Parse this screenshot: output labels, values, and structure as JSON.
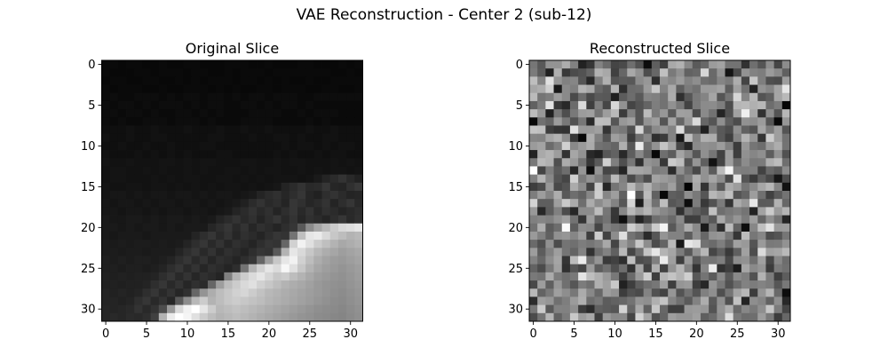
{
  "figure": {
    "suptitle": "VAE Reconstruction - Center 2 (sub-12)"
  },
  "chart_data": [
    {
      "type": "heatmap",
      "title": "Original Slice",
      "colormap": "gray",
      "grid": false,
      "xlim": [
        -0.5,
        31.5
      ],
      "ylim": [
        31.5,
        -0.5
      ],
      "xticks": [
        0,
        5,
        10,
        15,
        20,
        25,
        30
      ],
      "yticks": [
        0,
        5,
        10,
        15,
        20,
        25,
        30
      ],
      "grid_size": [
        32,
        32
      ],
      "description_of_values": "normalized intensity 0-1",
      "values": [
        [
          0.04,
          0.04,
          0.03,
          0.04,
          0.04,
          0.03,
          0.03,
          0.04,
          0.03,
          0.03,
          0.04,
          0.04,
          0.03,
          0.03,
          0.03,
          0.04,
          0.04,
          0.04,
          0.03,
          0.03,
          0.04,
          0.03,
          0.03,
          0.03,
          0.04,
          0.04,
          0.03,
          0.03,
          0.03,
          0.04,
          0.03,
          0.04
        ],
        [
          0.04,
          0.03,
          0.03,
          0.03,
          0.04,
          0.04,
          0.03,
          0.04,
          0.04,
          0.04,
          0.03,
          0.04,
          0.04,
          0.03,
          0.03,
          0.04,
          0.03,
          0.04,
          0.04,
          0.04,
          0.03,
          0.04,
          0.04,
          0.04,
          0.04,
          0.04,
          0.04,
          0.04,
          0.03,
          0.03,
          0.04,
          0.03
        ],
        [
          0.03,
          0.04,
          0.04,
          0.03,
          0.03,
          0.04,
          0.04,
          0.03,
          0.03,
          0.04,
          0.03,
          0.04,
          0.03,
          0.04,
          0.04,
          0.04,
          0.03,
          0.04,
          0.04,
          0.03,
          0.04,
          0.03,
          0.04,
          0.03,
          0.03,
          0.04,
          0.03,
          0.03,
          0.04,
          0.04,
          0.04,
          0.04
        ],
        [
          0.04,
          0.03,
          0.04,
          0.04,
          0.04,
          0.03,
          0.03,
          0.04,
          0.03,
          0.03,
          0.04,
          0.04,
          0.04,
          0.03,
          0.04,
          0.03,
          0.04,
          0.03,
          0.03,
          0.04,
          0.04,
          0.03,
          0.04,
          0.04,
          0.04,
          0.03,
          0.03,
          0.04,
          0.04,
          0.03,
          0.03,
          0.04
        ],
        [
          0.04,
          0.05,
          0.04,
          0.04,
          0.05,
          0.05,
          0.05,
          0.04,
          0.05,
          0.04,
          0.05,
          0.05,
          0.04,
          0.05,
          0.05,
          0.04,
          0.05,
          0.04,
          0.05,
          0.05,
          0.04,
          0.05,
          0.05,
          0.05,
          0.04,
          0.04,
          0.05,
          0.05,
          0.05,
          0.05,
          0.05,
          0.05
        ],
        [
          0.05,
          0.04,
          0.05,
          0.05,
          0.04,
          0.05,
          0.04,
          0.05,
          0.05,
          0.05,
          0.04,
          0.05,
          0.04,
          0.05,
          0.05,
          0.04,
          0.04,
          0.05,
          0.05,
          0.04,
          0.05,
          0.04,
          0.05,
          0.05,
          0.04,
          0.05,
          0.04,
          0.04,
          0.04,
          0.04,
          0.04,
          0.04
        ],
        [
          0.05,
          0.05,
          0.04,
          0.05,
          0.05,
          0.04,
          0.05,
          0.04,
          0.04,
          0.05,
          0.05,
          0.04,
          0.05,
          0.04,
          0.05,
          0.04,
          0.04,
          0.04,
          0.05,
          0.05,
          0.05,
          0.05,
          0.04,
          0.04,
          0.05,
          0.04,
          0.05,
          0.05,
          0.05,
          0.04,
          0.04,
          0.04
        ],
        [
          0.05,
          0.04,
          0.05,
          0.04,
          0.04,
          0.05,
          0.05,
          0.05,
          0.04,
          0.05,
          0.05,
          0.05,
          0.04,
          0.05,
          0.04,
          0.04,
          0.04,
          0.05,
          0.05,
          0.05,
          0.05,
          0.04,
          0.04,
          0.04,
          0.04,
          0.05,
          0.04,
          0.05,
          0.04,
          0.04,
          0.04,
          0.04
        ],
        [
          0.06,
          0.06,
          0.06,
          0.07,
          0.06,
          0.06,
          0.07,
          0.06,
          0.06,
          0.06,
          0.07,
          0.06,
          0.06,
          0.06,
          0.07,
          0.06,
          0.06,
          0.07,
          0.06,
          0.06,
          0.07,
          0.06,
          0.06,
          0.06,
          0.06,
          0.07,
          0.06,
          0.06,
          0.07,
          0.06,
          0.06,
          0.06
        ],
        [
          0.07,
          0.06,
          0.06,
          0.07,
          0.06,
          0.06,
          0.07,
          0.07,
          0.06,
          0.06,
          0.06,
          0.06,
          0.06,
          0.07,
          0.07,
          0.06,
          0.06,
          0.06,
          0.07,
          0.06,
          0.06,
          0.07,
          0.07,
          0.06,
          0.07,
          0.06,
          0.06,
          0.07,
          0.07,
          0.06,
          0.06,
          0.06
        ],
        [
          0.06,
          0.06,
          0.07,
          0.06,
          0.06,
          0.07,
          0.06,
          0.06,
          0.07,
          0.06,
          0.06,
          0.06,
          0.07,
          0.07,
          0.06,
          0.06,
          0.06,
          0.06,
          0.06,
          0.06,
          0.06,
          0.06,
          0.07,
          0.06,
          0.07,
          0.07,
          0.06,
          0.07,
          0.06,
          0.07,
          0.07,
          0.06
        ],
        [
          0.07,
          0.06,
          0.06,
          0.06,
          0.07,
          0.06,
          0.07,
          0.06,
          0.07,
          0.06,
          0.07,
          0.06,
          0.06,
          0.06,
          0.07,
          0.07,
          0.06,
          0.06,
          0.06,
          0.06,
          0.06,
          0.07,
          0.06,
          0.07,
          0.06,
          0.06,
          0.07,
          0.06,
          0.07,
          0.07,
          0.06,
          0.06
        ],
        [
          0.08,
          0.07,
          0.07,
          0.08,
          0.07,
          0.07,
          0.07,
          0.08,
          0.08,
          0.07,
          0.08,
          0.07,
          0.08,
          0.08,
          0.07,
          0.07,
          0.07,
          0.08,
          0.08,
          0.07,
          0.07,
          0.08,
          0.07,
          0.08,
          0.08,
          0.07,
          0.07,
          0.07,
          0.08,
          0.07,
          0.08,
          0.07
        ],
        [
          0.07,
          0.08,
          0.08,
          0.07,
          0.07,
          0.08,
          0.07,
          0.08,
          0.07,
          0.07,
          0.08,
          0.07,
          0.08,
          0.07,
          0.07,
          0.08,
          0.08,
          0.07,
          0.08,
          0.07,
          0.08,
          0.08,
          0.07,
          0.07,
          0.08,
          0.07,
          0.08,
          0.07,
          0.08,
          0.08,
          0.07,
          0.08
        ],
        [
          0.07,
          0.08,
          0.08,
          0.07,
          0.07,
          0.07,
          0.08,
          0.07,
          0.08,
          0.07,
          0.08,
          0.08,
          0.07,
          0.07,
          0.08,
          0.08,
          0.07,
          0.08,
          0.07,
          0.08,
          0.07,
          0.08,
          0.08,
          0.08,
          0.07,
          0.08,
          0.1,
          0.14,
          0.17,
          0.2,
          0.16,
          0.13
        ],
        [
          0.08,
          0.07,
          0.07,
          0.08,
          0.08,
          0.07,
          0.08,
          0.08,
          0.07,
          0.08,
          0.07,
          0.08,
          0.07,
          0.08,
          0.07,
          0.08,
          0.08,
          0.07,
          0.08,
          0.07,
          0.08,
          0.09,
          0.14,
          0.17,
          0.2,
          0.16,
          0.17,
          0.21,
          0.15,
          0.14,
          0.19,
          0.22
        ],
        [
          0.08,
          0.09,
          0.09,
          0.08,
          0.09,
          0.08,
          0.09,
          0.09,
          0.08,
          0.09,
          0.09,
          0.08,
          0.09,
          0.08,
          0.09,
          0.09,
          0.08,
          0.09,
          0.1,
          0.14,
          0.17,
          0.19,
          0.15,
          0.18,
          0.21,
          0.15,
          0.13,
          0.18,
          0.2,
          0.17,
          0.14,
          0.15
        ],
        [
          0.09,
          0.08,
          0.09,
          0.09,
          0.08,
          0.09,
          0.08,
          0.09,
          0.09,
          0.08,
          0.09,
          0.09,
          0.08,
          0.09,
          0.08,
          0.09,
          0.1,
          0.13,
          0.17,
          0.2,
          0.16,
          0.18,
          0.14,
          0.21,
          0.19,
          0.15,
          0.17,
          0.2,
          0.14,
          0.18,
          0.21,
          0.16
        ],
        [
          0.09,
          0.09,
          0.08,
          0.09,
          0.09,
          0.08,
          0.09,
          0.08,
          0.09,
          0.09,
          0.08,
          0.09,
          0.09,
          0.08,
          0.09,
          0.1,
          0.14,
          0.17,
          0.2,
          0.16,
          0.19,
          0.14,
          0.18,
          0.21,
          0.16,
          0.2,
          0.15,
          0.19,
          0.17,
          0.14,
          0.16,
          0.18
        ],
        [
          0.1,
          0.09,
          0.09,
          0.1,
          0.1,
          0.09,
          0.1,
          0.09,
          0.1,
          0.1,
          0.09,
          0.1,
          0.09,
          0.1,
          0.14,
          0.17,
          0.2,
          0.16,
          0.19,
          0.14,
          0.18,
          0.21,
          0.16,
          0.2,
          0.15,
          0.19,
          0.17,
          0.14,
          0.18,
          0.21,
          0.16,
          0.19
        ],
        [
          0.1,
          0.1,
          0.09,
          0.1,
          0.09,
          0.1,
          0.1,
          0.09,
          0.1,
          0.09,
          0.1,
          0.1,
          0.1,
          0.15,
          0.18,
          0.21,
          0.16,
          0.2,
          0.15,
          0.19,
          0.17,
          0.14,
          0.18,
          0.21,
          0.35,
          0.55,
          0.65,
          0.72,
          0.8,
          0.85,
          0.87,
          0.9
        ],
        [
          0.1,
          0.09,
          0.1,
          0.1,
          0.1,
          0.09,
          0.1,
          0.1,
          0.1,
          0.1,
          0.1,
          0.14,
          0.18,
          0.21,
          0.16,
          0.2,
          0.15,
          0.19,
          0.17,
          0.14,
          0.18,
          0.21,
          0.2,
          0.45,
          0.75,
          0.9,
          0.92,
          0.85,
          0.78,
          0.74,
          0.7,
          0.72
        ],
        [
          0.11,
          0.1,
          0.11,
          0.1,
          0.11,
          0.11,
          0.1,
          0.11,
          0.1,
          0.11,
          0.14,
          0.18,
          0.21,
          0.16,
          0.2,
          0.15,
          0.19,
          0.17,
          0.14,
          0.18,
          0.21,
          0.2,
          0.4,
          0.82,
          0.95,
          0.88,
          0.8,
          0.75,
          0.7,
          0.66,
          0.68,
          0.7
        ],
        [
          0.11,
          0.11,
          0.1,
          0.11,
          0.11,
          0.1,
          0.11,
          0.11,
          0.11,
          0.14,
          0.18,
          0.21,
          0.16,
          0.2,
          0.15,
          0.19,
          0.17,
          0.14,
          0.18,
          0.21,
          0.2,
          0.35,
          0.7,
          0.9,
          0.85,
          0.78,
          0.72,
          0.68,
          0.65,
          0.62,
          0.64,
          0.66
        ],
        [
          0.12,
          0.11,
          0.12,
          0.11,
          0.12,
          0.12,
          0.11,
          0.12,
          0.14,
          0.18,
          0.21,
          0.16,
          0.2,
          0.15,
          0.19,
          0.17,
          0.14,
          0.18,
          0.21,
          0.4,
          0.62,
          0.78,
          0.9,
          0.95,
          0.82,
          0.74,
          0.68,
          0.64,
          0.61,
          0.6,
          0.62,
          0.64
        ],
        [
          0.12,
          0.12,
          0.11,
          0.12,
          0.12,
          0.11,
          0.12,
          0.14,
          0.18,
          0.21,
          0.16,
          0.2,
          0.15,
          0.19,
          0.17,
          0.14,
          0.18,
          0.45,
          0.7,
          0.82,
          0.9,
          0.86,
          0.97,
          0.88,
          0.78,
          0.7,
          0.65,
          0.62,
          0.6,
          0.58,
          0.6,
          0.62
        ],
        [
          0.13,
          0.12,
          0.13,
          0.12,
          0.13,
          0.13,
          0.14,
          0.18,
          0.21,
          0.16,
          0.2,
          0.15,
          0.19,
          0.17,
          0.14,
          0.5,
          0.7,
          0.8,
          0.86,
          0.9,
          0.84,
          0.78,
          0.8,
          0.74,
          0.7,
          0.66,
          0.62,
          0.6,
          0.58,
          0.57,
          0.59,
          0.61
        ],
        [
          0.13,
          0.13,
          0.12,
          0.13,
          0.13,
          0.14,
          0.18,
          0.21,
          0.16,
          0.2,
          0.15,
          0.19,
          0.17,
          0.4,
          0.62,
          0.74,
          0.8,
          0.85,
          0.88,
          0.82,
          0.78,
          0.74,
          0.7,
          0.68,
          0.66,
          0.63,
          0.6,
          0.58,
          0.57,
          0.56,
          0.58,
          0.6
        ],
        [
          0.14,
          0.13,
          0.14,
          0.13,
          0.14,
          0.18,
          0.21,
          0.16,
          0.2,
          0.15,
          0.19,
          0.4,
          0.58,
          0.68,
          0.74,
          0.78,
          0.82,
          0.84,
          0.8,
          0.76,
          0.72,
          0.7,
          0.68,
          0.66,
          0.64,
          0.62,
          0.6,
          0.58,
          0.56,
          0.55,
          0.57,
          0.59
        ],
        [
          0.14,
          0.14,
          0.13,
          0.14,
          0.18,
          0.21,
          0.16,
          0.2,
          0.15,
          0.35,
          0.55,
          0.72,
          0.8,
          0.7,
          0.74,
          0.78,
          0.8,
          0.78,
          0.76,
          0.74,
          0.71,
          0.69,
          0.67,
          0.65,
          0.63,
          0.61,
          0.59,
          0.57,
          0.55,
          0.54,
          0.56,
          0.58
        ],
        [
          0.15,
          0.14,
          0.15,
          0.16,
          0.2,
          0.16,
          0.2,
          0.3,
          0.6,
          0.85,
          0.95,
          1.0,
          0.9,
          0.8,
          0.72,
          0.74,
          0.76,
          0.74,
          0.72,
          0.7,
          0.68,
          0.66,
          0.64,
          0.62,
          0.6,
          0.58,
          0.56,
          0.55,
          0.54,
          0.53,
          0.55,
          0.57
        ],
        [
          0.15,
          0.16,
          0.15,
          0.17,
          0.16,
          0.18,
          0.25,
          0.7,
          0.92,
          1.0,
          0.96,
          0.88,
          0.8,
          0.74,
          0.7,
          0.72,
          0.74,
          0.72,
          0.7,
          0.68,
          0.66,
          0.64,
          0.62,
          0.6,
          0.58,
          0.57,
          0.55,
          0.54,
          0.53,
          0.52,
          0.54,
          0.56
        ]
      ]
    },
    {
      "type": "heatmap",
      "title": "Reconstructed Slice",
      "colormap": "gray",
      "grid": false,
      "xlim": [
        -0.5,
        31.5
      ],
      "ylim": [
        31.5,
        -0.5
      ],
      "xticks": [
        0,
        5,
        10,
        15,
        20,
        25,
        30
      ],
      "yticks": [
        0,
        5,
        10,
        15,
        20,
        25,
        30
      ],
      "grid_size": [
        32,
        32
      ],
      "description_of_values": "near-uniform noise intensities centered around 0.5",
      "noise_seed": 12,
      "value_range": [
        0.0,
        1.0
      ]
    }
  ]
}
